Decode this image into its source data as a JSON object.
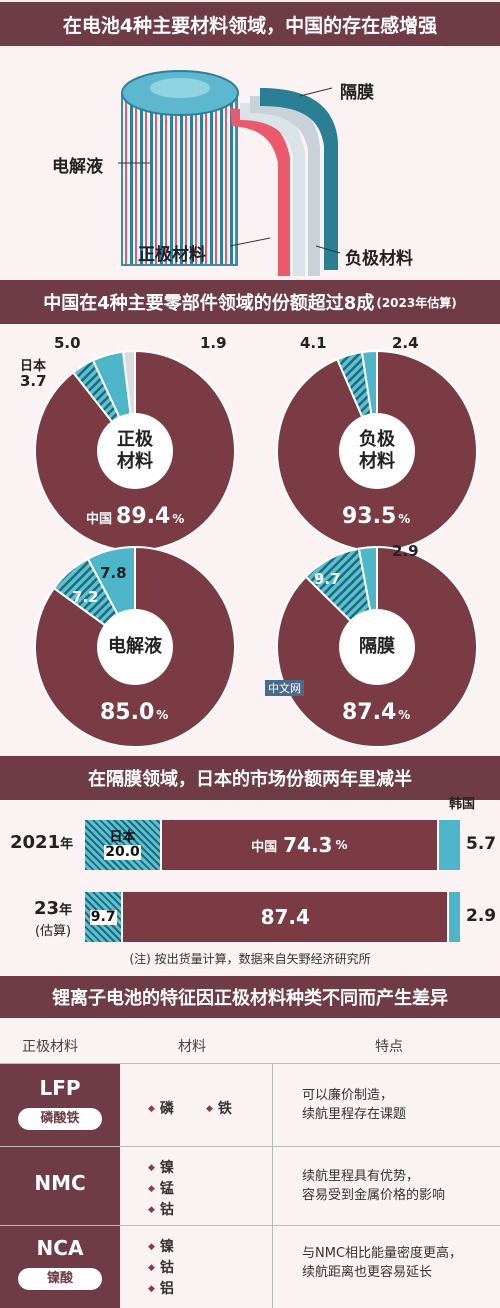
{
  "header": {
    "title": "在电池4种主要材料领域，中国的存在感增强"
  },
  "battery_diagram": {
    "labels": {
      "separator": "隔膜",
      "electrolyte": "电解液",
      "cathode": "正极材料",
      "anode": "负极材料"
    }
  },
  "section2": {
    "title": "中国在4种主要零部件领域的份额超过8成",
    "note": "(2023年估算)"
  },
  "colors": {
    "china": "#7a3b44",
    "japan": "#2d8ea3",
    "korea": "#4db6c8",
    "other": "#dcdcdc",
    "band": "#6e3b46"
  },
  "chart_data": [
    {
      "type": "pie",
      "center": "正极材料",
      "slices": [
        {
          "name": "中国",
          "value": 89.4
        },
        {
          "name": "日本",
          "value": 3.7
        },
        {
          "name": "",
          "value": 5.0
        },
        {
          "name": "",
          "value": 1.9
        }
      ]
    },
    {
      "type": "pie",
      "center": "负极材料",
      "slices": [
        {
          "name": "",
          "value": 93.5
        },
        {
          "name": "",
          "value": 4.1
        },
        {
          "name": "",
          "value": 2.4
        }
      ]
    },
    {
      "type": "pie",
      "center": "电解液",
      "slices": [
        {
          "name": "",
          "value": 85.0
        },
        {
          "name": "",
          "value": 7.2
        },
        {
          "name": "",
          "value": 7.8
        }
      ]
    },
    {
      "type": "pie",
      "center": "隔膜",
      "slices": [
        {
          "name": "",
          "value": 87.4
        },
        {
          "name": "",
          "value": 9.7
        },
        {
          "name": "",
          "value": 2.9
        }
      ]
    },
    {
      "type": "bar",
      "title": "在隔膜领域，日本的市场份额两年里减半",
      "categories": [
        "2021年",
        "23年(估算)"
      ],
      "series": [
        {
          "name": "日本",
          "values": [
            20.0,
            9.7
          ]
        },
        {
          "name": "中国",
          "values": [
            74.3,
            87.4
          ]
        },
        {
          "name": "韩国",
          "values": [
            5.7,
            2.9
          ]
        }
      ]
    }
  ],
  "donut_labels": {
    "d1": {
      "center_line1": "正极",
      "center_line2": "材料",
      "china_prefix": "中国",
      "china_value": "89.4",
      "unit": "%",
      "japan_name": "日本",
      "japan_value": "3.7",
      "v2": "5.0",
      "v3": "1.9"
    },
    "d2": {
      "center_line1": "负极",
      "center_line2": "材料",
      "china_value": "93.5",
      "unit": "%",
      "v1": "4.1",
      "v2": "2.4"
    },
    "d3": {
      "center_line1": "电解液",
      "china_value": "85.0",
      "unit": "%",
      "v1": "7.2",
      "v2": "7.8"
    },
    "d4": {
      "center_line1": "隔膜",
      "china_value": "87.4",
      "unit": "%",
      "v1": "9.7",
      "v2": "2.9"
    }
  },
  "watermark": "中文网",
  "section3": {
    "title": "在隔膜领域，日本的市场份额两年里减半",
    "row1": {
      "year": "2021",
      "year_suffix": "年",
      "jp_name": "日本",
      "jp": "20.0",
      "cn_name": "中国",
      "cn": "74.3",
      "unit": "%",
      "kr": "5.7"
    },
    "row2": {
      "year": "23",
      "year_suffix": "年",
      "year_note": "(估算)",
      "jp": "9.7",
      "cn": "87.4",
      "kr": "2.9"
    },
    "korea_label": "韩国",
    "note": "(注) 按出货量计算，数据来自矢野经济研究所"
  },
  "section4": {
    "title": "锂离子电池的特征因正极材料种类不同而产生差异",
    "headers": [
      "正极材料",
      "材料",
      "特点"
    ],
    "rows": [
      {
        "code": "LFP",
        "name": "磷酸铁",
        "elements": [
          "磷",
          "铁"
        ],
        "feature_lines": [
          "可以廉价制造，",
          "续航里程存在课题"
        ]
      },
      {
        "code": "NMC",
        "name": "",
        "elements": [
          "镍",
          "锰",
          "钴"
        ],
        "feature_lines": [
          "续航里程具有优势，",
          "容易受到金属价格的影响"
        ]
      },
      {
        "code": "NCA",
        "name": "镍酸",
        "elements": [
          "镍",
          "钴",
          "铝"
        ],
        "feature_lines": [
          "与NMC相比能量密度更高，",
          "续航距离也更容易延长"
        ]
      }
    ]
  }
}
